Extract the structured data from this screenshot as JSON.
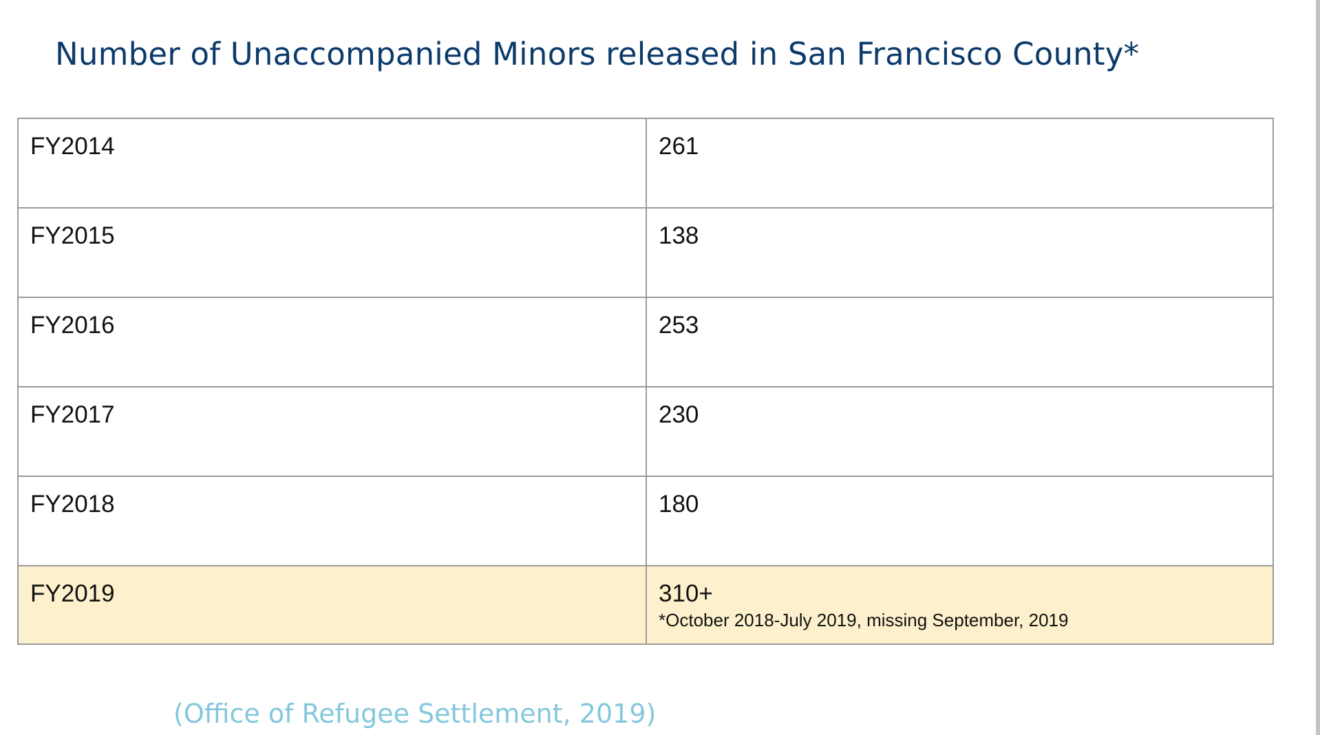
{
  "title": "Number of Unaccompanied Minors released in San Francisco County*",
  "table": {
    "rows": [
      {
        "year": "FY2014",
        "count": "261"
      },
      {
        "year": "FY2015",
        "count": "138"
      },
      {
        "year": "FY2016",
        "count": "253"
      },
      {
        "year": "FY2017",
        "count": "230"
      },
      {
        "year": "FY2018",
        "count": "180"
      },
      {
        "year": "FY2019",
        "count": "310+",
        "note": "*October 2018-July 2019, missing September, 2019"
      }
    ]
  },
  "source": "(Office of Refugee Settlement, 2019)",
  "colors": {
    "title": "#0b3a6b",
    "highlight_row": "#fdf0cc",
    "source": "#84c7dd",
    "border": "#9a9a9a"
  }
}
